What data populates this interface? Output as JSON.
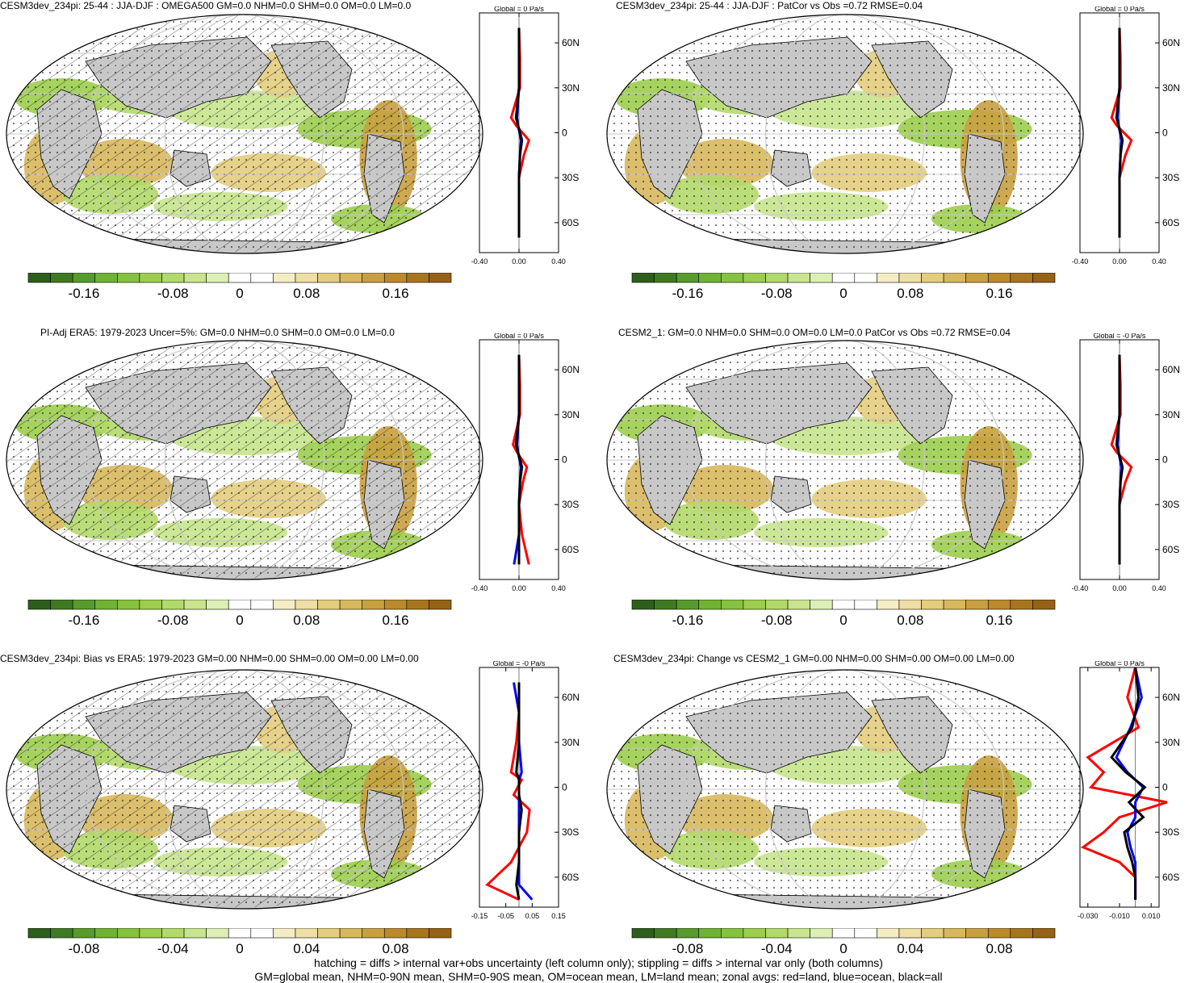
{
  "colors": {
    "land": "#c8c8c8",
    "ocean": "#ffffff",
    "coast": "#000000",
    "grid": "#c8c8c8",
    "zonal_land": "#ff0000",
    "zonal_ocean": "#0000ff",
    "zonal_all": "#000000"
  },
  "colorbar_palette": [
    "#2e5e1c",
    "#3f7a22",
    "#569b2c",
    "#6fb234",
    "#86c23f",
    "#9ccd4e",
    "#b2d96b",
    "#c8e48e",
    "#dcefb5",
    "#ffffff",
    "#ffffff",
    "#f4ecc4",
    "#eddfa5",
    "#e3cd7e",
    "#d7b85d",
    "#c9a041",
    "#ba8a2d",
    "#a8751f",
    "#956216"
  ],
  "panels": [
    {
      "title": "CESM3dev_234pi: 25-44 : JJA-DJF : OMEGA500 GM=0.0 NHM=0.0 SHM=0.0 OM=0.0 LM=0.0",
      "colorbar_ticks": [
        "-0.16",
        "-0.08",
        "0",
        "0.08",
        "0.16"
      ],
      "zonal_title": "Global = 0 Pa/s",
      "zonal_xticks": [
        "-0.40",
        "0.00",
        "0.40"
      ],
      "lat_labels": [
        "60N",
        "30N",
        "0",
        "30S",
        "60S"
      ]
    },
    {
      "title": "CESM3dev_234pi: 25-44 : JJA-DJF : PatCor vs Obs =0.72 RMSE=0.04",
      "colorbar_ticks": [
        "-0.16",
        "-0.08",
        "0",
        "0.08",
        "0.16"
      ],
      "zonal_title": "Global = 0 Pa/s",
      "zonal_xticks": [
        "-0.40",
        "0.00",
        "0.40"
      ],
      "lat_labels": [
        "60N",
        "30N",
        "0",
        "30S",
        "60S"
      ]
    },
    {
      "title": "PI-Adj ERA5: 1979-2023 Uncer=5%: GM=0.0 NHM=0.0 SHM=0.0 OM=0.0 LM=0.0",
      "colorbar_ticks": [
        "-0.16",
        "-0.08",
        "0",
        "0.08",
        "0.16"
      ],
      "zonal_title": "Global = 0 Pa/s",
      "zonal_xticks": [
        "-0.40",
        "0.00",
        "0.40"
      ],
      "lat_labels": [
        "60N",
        "30N",
        "0",
        "30S",
        "60S"
      ]
    },
    {
      "title": "CESM2_1: GM=0.0 NHM=0.0 SHM=0.0 OM=0.0 LM=0.0 PatCor vs Obs =0.72 RMSE=0.04",
      "colorbar_ticks": [
        "-0.16",
        "-0.08",
        "0",
        "0.08",
        "0.16"
      ],
      "zonal_title": "Global = -0 Pa/s",
      "zonal_xticks": [
        "-0.40",
        "0.00",
        "0.40"
      ],
      "lat_labels": [
        "60N",
        "30N",
        "0",
        "30S",
        "60S"
      ]
    },
    {
      "title": "CESM3dev_234pi: Bias vs ERA5: 1979-2023 GM=0.00 NHM=0.00 SHM=0.00 OM=0.00 LM=0.00",
      "colorbar_ticks": [
        "-0.08",
        "-0.04",
        "0",
        "0.04",
        "0.08"
      ],
      "zonal_title": "Global = -0 Pa/s",
      "zonal_xticks": [
        "-0.15",
        "-0.05",
        "0.05",
        "0.15"
      ],
      "lat_labels": [
        "60N",
        "30N",
        "0",
        "30S",
        "60S"
      ]
    },
    {
      "title": "CESM3dev_234pi: Change vs CESM2_1 GM=0.00 NHM=0.00 SHM=0.00 OM=0.00 LM=0.00",
      "colorbar_ticks": [
        "-0.08",
        "-0.04",
        "0",
        "0.04",
        "0.08"
      ],
      "zonal_title": "Global = 0 Pa/s",
      "zonal_xticks": [
        "-0.030",
        "-0.010",
        "0.010"
      ],
      "lat_labels": [
        "60N",
        "30N",
        "0",
        "30S",
        "60S"
      ]
    }
  ],
  "footer": {
    "line1": "hatching = diffs > internal var+obs uncertainty (left column only); stippling = diffs > internal var only (both columns)",
    "line2": "GM=global mean, NHM=0-90N mean, SHM=0-90S mean, OM=ocean mean, LM=land mean; zonal avgs: red=land, blue=ocean, black=all"
  },
  "chart_data": [
    {
      "type": "heatmap",
      "title": "CESM3dev_234pi: 25-44 : JJA-DJF : OMEGA500 GM=0.0 NHM=0.0 SHM=0.0 OM=0.0 LM=0.0",
      "colorbar": [
        -0.16,
        -0.08,
        0,
        0.08,
        0.16
      ],
      "zonal": {
        "ylim": [
          -80,
          80
        ],
        "xlim": [
          -0.4,
          0.4
        ],
        "lat": [
          70,
          50,
          30,
          10,
          5,
          -5,
          -15,
          -30,
          -50,
          -70
        ],
        "series": [
          {
            "values": [
              0,
              0.01,
              0.01,
              -0.08,
              -0.03,
              0.1,
              0.05,
              0,
              0,
              0
            ]
          },
          {
            "values": [
              0,
              0,
              0,
              -0.02,
              -0.01,
              0.02,
              0.01,
              0,
              0,
              0
            ]
          },
          {
            "values": [
              0,
              0,
              0,
              -0.03,
              -0.01,
              0.03,
              0.01,
              0,
              0,
              0
            ]
          }
        ]
      }
    },
    {
      "type": "heatmap",
      "title": "CESM3dev_234pi: 25-44 : JJA-DJF : PatCor vs Obs =0.72 RMSE=0.04",
      "colorbar": [
        -0.16,
        -0.08,
        0,
        0.08,
        0.16
      ],
      "zonal": {
        "ylim": [
          -80,
          80
        ],
        "xlim": [
          -0.4,
          0.4
        ],
        "lat": [
          70,
          50,
          30,
          10,
          5,
          -5,
          -15,
          -30,
          -50,
          -70
        ],
        "series": [
          {
            "values": [
              0,
              0.01,
              0.01,
              -0.08,
              -0.03,
              0.12,
              0.06,
              0,
              0,
              0
            ]
          },
          {
            "values": [
              0,
              0,
              0,
              -0.02,
              -0.01,
              0.02,
              0.01,
              0,
              0,
              0
            ]
          },
          {
            "values": [
              0,
              0,
              0,
              -0.03,
              -0.01,
              0.03,
              0.01,
              0,
              0,
              0
            ]
          }
        ]
      }
    },
    {
      "type": "heatmap",
      "title": "PI-Adj ERA5: 1979-2023 Uncer=5%: GM=0.0 NHM=0.0 SHM=0.0 OM=0.0 LM=0.0",
      "colorbar": [
        -0.16,
        -0.08,
        0,
        0.08,
        0.16
      ],
      "zonal": {
        "ylim": [
          -80,
          80
        ],
        "xlim": [
          -0.4,
          0.4
        ],
        "lat": [
          70,
          50,
          30,
          10,
          5,
          -5,
          -15,
          -30,
          -50,
          -70
        ],
        "series": [
          {
            "values": [
              0,
              0.01,
              0.01,
              -0.06,
              -0.02,
              0.08,
              0.04,
              0,
              0.03,
              0.1
            ]
          },
          {
            "values": [
              0,
              0,
              0,
              -0.02,
              -0.01,
              0.02,
              0.01,
              0,
              0,
              -0.05
            ]
          },
          {
            "values": [
              0,
              0,
              0,
              -0.03,
              -0.01,
              0.03,
              0.01,
              0,
              0,
              0
            ]
          }
        ]
      }
    },
    {
      "type": "heatmap",
      "title": "CESM2_1: GM=0.0 NHM=0.0 SHM=0.0 OM=0.0 LM=0.0 PatCor vs Obs =0.72 RMSE=0.04",
      "colorbar": [
        -0.16,
        -0.08,
        0,
        0.08,
        0.16
      ],
      "zonal": {
        "ylim": [
          -80,
          80
        ],
        "xlim": [
          -0.4,
          0.4
        ],
        "lat": [
          70,
          50,
          30,
          10,
          5,
          -5,
          -15,
          -30,
          -50,
          -70
        ],
        "series": [
          {
            "values": [
              0,
              0.01,
              0.01,
              -0.08,
              -0.03,
              0.12,
              0.06,
              0,
              0,
              0
            ]
          },
          {
            "values": [
              0,
              0,
              0,
              -0.02,
              -0.01,
              0.02,
              0.01,
              0,
              0,
              0
            ]
          },
          {
            "values": [
              0,
              0,
              0,
              -0.03,
              -0.01,
              0.03,
              0.01,
              0,
              0,
              0
            ]
          }
        ]
      }
    },
    {
      "type": "heatmap",
      "title": "CESM3dev_234pi: Bias vs ERA5: 1979-2023 GM=0.00 NHM=0.00 SHM=0.00 OM=0.00 LM=0.00",
      "colorbar": [
        -0.08,
        -0.04,
        0,
        0.04,
        0.08
      ],
      "zonal": {
        "ylim": [
          -80,
          80
        ],
        "xlim": [
          -0.15,
          0.15
        ],
        "lat": [
          70,
          50,
          30,
          10,
          5,
          -5,
          -15,
          -30,
          -50,
          -65,
          -75
        ],
        "series": [
          {
            "values": [
              0,
              0,
              -0.01,
              -0.03,
              0.01,
              -0.02,
              0.04,
              0.03,
              -0.03,
              -0.12,
              0
            ]
          },
          {
            "values": [
              -0.02,
              0,
              0,
              0.01,
              0,
              0,
              0,
              0,
              0,
              0,
              0.05
            ]
          },
          {
            "values": [
              0,
              0,
              0,
              -0.01,
              0,
              0,
              0.01,
              0,
              0,
              -0.01,
              0
            ]
          }
        ]
      }
    },
    {
      "type": "heatmap",
      "title": "CESM3dev_234pi: Change vs CESM2_1 GM=0.00 NHM=0.00 SHM=0.00 OM=0.00 LM=0.00",
      "colorbar": [
        -0.08,
        -0.04,
        0,
        0.04,
        0.08
      ],
      "zonal": {
        "ylim": [
          -80,
          80
        ],
        "xlim": [
          -0.035,
          0.015
        ],
        "lat": [
          80,
          60,
          40,
          20,
          10,
          0,
          -10,
          -20,
          -30,
          -40,
          -50,
          -60,
          -75
        ],
        "series": [
          {
            "values": [
              0,
              -0.005,
              0.002,
              -0.03,
              -0.02,
              -0.028,
              0.02,
              -0.01,
              -0.02,
              -0.033,
              -0.01,
              0,
              0
            ]
          },
          {
            "values": [
              0,
              0.004,
              -0.003,
              -0.012,
              -0.005,
              0.005,
              0,
              0,
              -0.005,
              -0.003,
              0,
              0,
              0
            ]
          },
          {
            "values": [
              0,
              0.002,
              -0.002,
              -0.015,
              -0.006,
              0.006,
              -0.004,
              0.005,
              -0.007,
              -0.005,
              -0.002,
              0,
              0
            ]
          }
        ]
      }
    }
  ]
}
